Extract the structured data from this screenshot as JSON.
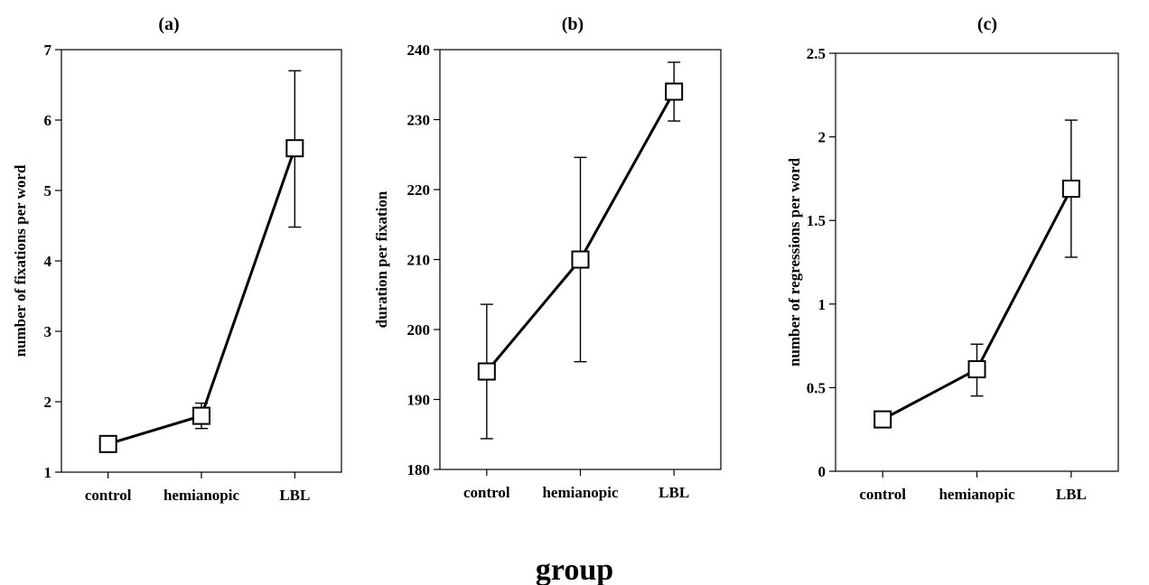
{
  "chart_data": [
    {
      "type": "line",
      "title": "(a)",
      "xlabel": "",
      "ylabel": "number of fixations per word",
      "categories": [
        "control",
        "hemianopic",
        "LBL"
      ],
      "values": [
        1.4,
        1.8,
        5.6
      ],
      "error_low": [
        1.4,
        1.62,
        4.48
      ],
      "error_high": [
        1.4,
        1.98,
        6.7
      ],
      "ylim": [
        1,
        7
      ],
      "yticks": [
        "1",
        "2",
        "3",
        "4",
        "5",
        "6",
        "7"
      ],
      "ytick_values": [
        1,
        2,
        3,
        4,
        5,
        6,
        7
      ],
      "grid": false,
      "marker": "open-square"
    },
    {
      "type": "line",
      "title": "(b)",
      "xlabel": "",
      "ylabel": "duration per fixation",
      "categories": [
        "control",
        "hemianopic",
        "LBL"
      ],
      "values": [
        194,
        210,
        234
      ],
      "error_low": [
        184.4,
        195.4,
        229.8
      ],
      "error_high": [
        203.6,
        224.6,
        238.2
      ],
      "ylim": [
        180,
        240
      ],
      "yticks": [
        "180",
        "190",
        "200",
        "210",
        "220",
        "230",
        "240"
      ],
      "ytick_values": [
        180,
        190,
        200,
        210,
        220,
        230,
        240
      ],
      "grid": false,
      "marker": "open-square"
    },
    {
      "type": "line",
      "title": "(c)",
      "xlabel": "",
      "ylabel": "number of regressions per word",
      "categories": [
        "control",
        "hemianopic",
        "LBL"
      ],
      "values": [
        0.31,
        0.61,
        1.69
      ],
      "error_low": [
        0.31,
        0.45,
        1.28
      ],
      "error_high": [
        0.31,
        0.76,
        2.1
      ],
      "ylim": [
        0,
        2.5
      ],
      "yticks": [
        "0",
        "0.5",
        "1",
        "1.5",
        "2",
        "2.5"
      ],
      "ytick_values": [
        0,
        0.5,
        1,
        1.5,
        2,
        2.5
      ],
      "grid": false,
      "marker": "open-square"
    }
  ],
  "shared_xlabel": "group"
}
